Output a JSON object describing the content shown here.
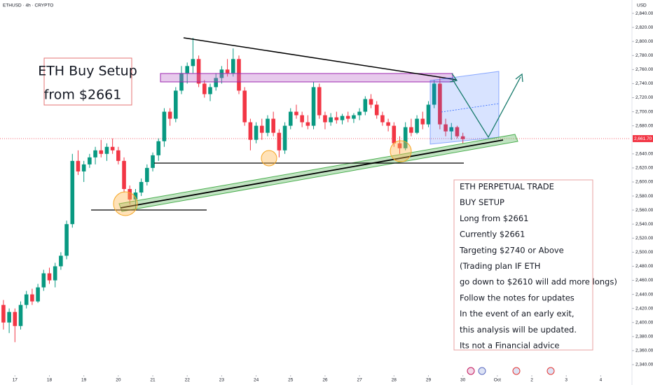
{
  "chart_data": {
    "type": "candlestick",
    "header": "ETHUSD · 4h · CRYPTO",
    "currency": "USD",
    "up_color": "#089981",
    "down_color": "#f23645",
    "open": [
      2425,
      2400,
      2415,
      2395,
      2425,
      2440,
      2430,
      2450,
      2470,
      2460,
      2480,
      2495,
      2540,
      2630,
      2615,
      2625,
      2635,
      2645,
      2640,
      2650,
      2645,
      2630,
      2590,
      2575,
      2585,
      2600,
      2620,
      2638,
      2658,
      2700,
      2690,
      2730,
      2755,
      2765,
      2775,
      2740,
      2725,
      2735,
      2748,
      2760,
      2755,
      2775,
      2730,
      2685,
      2660,
      2680,
      2670,
      2690,
      2670,
      2645,
      2680,
      2700,
      2695,
      2685,
      2680,
      2735,
      2695,
      2685,
      2692,
      2688,
      2694,
      2690,
      2695,
      2700,
      2718,
      2710,
      2695,
      2685,
      2680,
      2655,
      2648,
      2678,
      2670,
      2690,
      2682,
      2710,
      2740,
      2682,
      2672,
      2678,
      2665
    ],
    "high": [
      2432,
      2420,
      2420,
      2430,
      2445,
      2448,
      2455,
      2475,
      2478,
      2485,
      2500,
      2545,
      2640,
      2645,
      2630,
      2640,
      2650,
      2660,
      2655,
      2662,
      2650,
      2635,
      2595,
      2590,
      2605,
      2625,
      2642,
      2662,
      2705,
      2705,
      2735,
      2765,
      2770,
      2805,
      2780,
      2745,
      2740,
      2755,
      2765,
      2775,
      2790,
      2780,
      2735,
      2690,
      2685,
      2690,
      2695,
      2700,
      2675,
      2685,
      2705,
      2710,
      2700,
      2695,
      2742,
      2740,
      2700,
      2698,
      2700,
      2697,
      2700,
      2698,
      2705,
      2722,
      2725,
      2715,
      2700,
      2690,
      2685,
      2665,
      2685,
      2690,
      2695,
      2700,
      2715,
      2745,
      2748,
      2690,
      2684,
      2680,
      2670
    ],
    "low": [
      2390,
      2385,
      2372,
      2390,
      2420,
      2425,
      2428,
      2445,
      2455,
      2450,
      2475,
      2490,
      2535,
      2610,
      2600,
      2620,
      2625,
      2635,
      2630,
      2640,
      2625,
      2585,
      2568,
      2560,
      2580,
      2595,
      2615,
      2630,
      2650,
      2680,
      2685,
      2725,
      2740,
      2755,
      2735,
      2720,
      2715,
      2730,
      2740,
      2750,
      2750,
      2725,
      2680,
      2645,
      2655,
      2660,
      2665,
      2665,
      2635,
      2640,
      2675,
      2690,
      2678,
      2675,
      2675,
      2690,
      2675,
      2680,
      2683,
      2682,
      2685,
      2684,
      2688,
      2695,
      2705,
      2690,
      2680,
      2672,
      2650,
      2640,
      2645,
      2665,
      2668,
      2675,
      2678,
      2705,
      2675,
      2665,
      2660,
      2662,
      2655
    ],
    "close": [
      2400,
      2415,
      2395,
      2425,
      2440,
      2430,
      2450,
      2470,
      2460,
      2480,
      2495,
      2540,
      2630,
      2615,
      2625,
      2635,
      2645,
      2640,
      2650,
      2645,
      2630,
      2590,
      2575,
      2585,
      2600,
      2620,
      2638,
      2658,
      2700,
      2690,
      2730,
      2755,
      2765,
      2775,
      2740,
      2725,
      2735,
      2748,
      2760,
      2755,
      2775,
      2730,
      2685,
      2660,
      2680,
      2670,
      2690,
      2670,
      2645,
      2680,
      2700,
      2695,
      2685,
      2680,
      2735,
      2695,
      2685,
      2692,
      2688,
      2694,
      2690,
      2695,
      2700,
      2718,
      2710,
      2695,
      2685,
      2680,
      2655,
      2648,
      2678,
      2670,
      2690,
      2682,
      2710,
      2740,
      2682,
      2672,
      2678,
      2665,
      2661
    ],
    "xlim": [
      -0.6,
      109.2
    ],
    "xticks": [
      {
        "value": 2,
        "label": "17"
      },
      {
        "value": 8,
        "label": "18"
      },
      {
        "value": 14,
        "label": "19"
      },
      {
        "value": 20,
        "label": "20"
      },
      {
        "value": 26,
        "label": "21"
      },
      {
        "value": 32,
        "label": "22"
      },
      {
        "value": 38,
        "label": "23"
      },
      {
        "value": 44,
        "label": "24"
      },
      {
        "value": 50,
        "label": "25"
      },
      {
        "value": 56,
        "label": "26"
      },
      {
        "value": 62,
        "label": "27"
      },
      {
        "value": 68,
        "label": "28"
      },
      {
        "value": 74,
        "label": "29"
      },
      {
        "value": 80,
        "label": "30"
      },
      {
        "value": 86,
        "label": "Oct"
      },
      {
        "value": 92,
        "label": "2"
      },
      {
        "value": 98,
        "label": "3"
      },
      {
        "value": 104,
        "label": "4"
      }
    ],
    "ylim": [
      2321,
      2859
    ],
    "yticks": [
      {
        "value": 2840,
        "label": "2,840.00"
      },
      {
        "value": 2820,
        "label": "2,820.00"
      },
      {
        "value": 2800,
        "label": "2,800.00"
      },
      {
        "value": 2780,
        "label": "2,780.00"
      },
      {
        "value": 2760,
        "label": "2,760.00"
      },
      {
        "value": 2740,
        "label": "2,740.00"
      },
      {
        "value": 2720,
        "label": "2,720.00"
      },
      {
        "value": 2700,
        "label": "2,700.00"
      },
      {
        "value": 2680,
        "label": "2,680.00"
      },
      {
        "value": 2640,
        "label": "2,640.00"
      },
      {
        "value": 2620,
        "label": "2,620.00"
      },
      {
        "value": 2600,
        "label": "2,600.00"
      },
      {
        "value": 2580,
        "label": "2,580.00"
      },
      {
        "value": 2560,
        "label": "2,560.00"
      },
      {
        "value": 2540,
        "label": "2,540.00"
      },
      {
        "value": 2520,
        "label": "2,520.00"
      },
      {
        "value": 2500,
        "label": "2,500.00"
      },
      {
        "value": 2480,
        "label": "2,480.00"
      },
      {
        "value": 2460,
        "label": "2,460.00"
      },
      {
        "value": 2440,
        "label": "2,440.00"
      },
      {
        "value": 2420,
        "label": "2,420.00"
      },
      {
        "value": 2400,
        "label": "2,400.00"
      },
      {
        "value": 2380,
        "label": "2,380.00"
      },
      {
        "value": 2360,
        "label": "2,360.00"
      },
      {
        "value": 2340,
        "label": "2,340.00"
      }
    ],
    "last_price": {
      "value": 2661.7,
      "label": "2,661.70"
    },
    "grid": false,
    "annotations": {
      "setup_box": [
        "ETH Buy Setup",
        "from $2661"
      ],
      "info_box": [
        "ETH PERPETUAL TRADE",
        "BUY SETUP",
        "Long from $2661",
        "Currently $2661",
        "Targeting $2740 or Above",
        "(Trading plan IF ETH",
        "go down to $2610 will add more longs)",
        "Follow the notes for updates",
        "In the event of an early exit,",
        "this analysis will be updated.",
        "Its not a Financial advice"
      ]
    }
  }
}
